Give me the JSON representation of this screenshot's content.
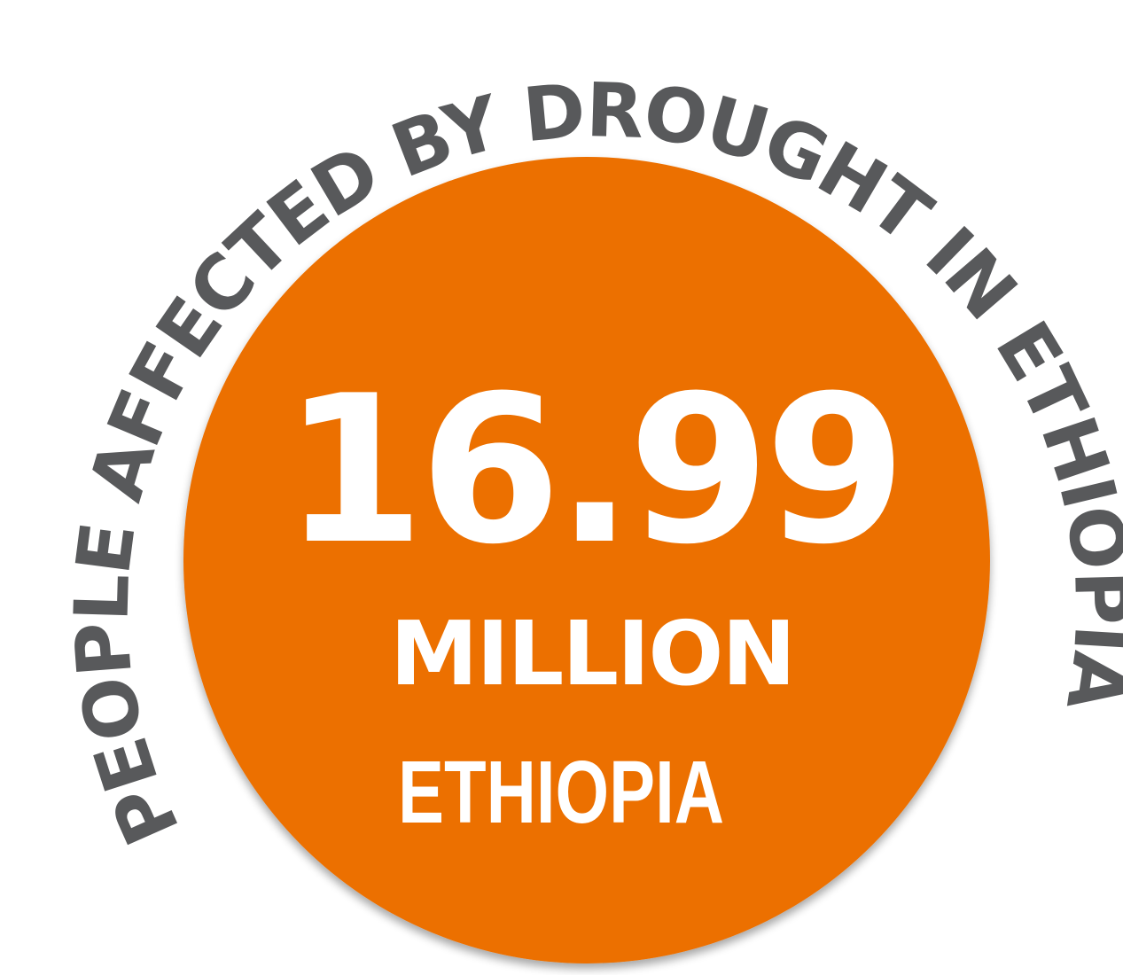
{
  "badge": {
    "arc_label": "PEOPLE AFFECTED BY DROUGHT IN ETHIOPIA",
    "value": "16.99",
    "unit": "MILLION",
    "country": "ETHIOPIA"
  },
  "colors": {
    "circle_fill": "#EC7003",
    "arc_text": "#58595B",
    "inner_text": "#FFFFFF",
    "background": "#FFFFFF"
  }
}
